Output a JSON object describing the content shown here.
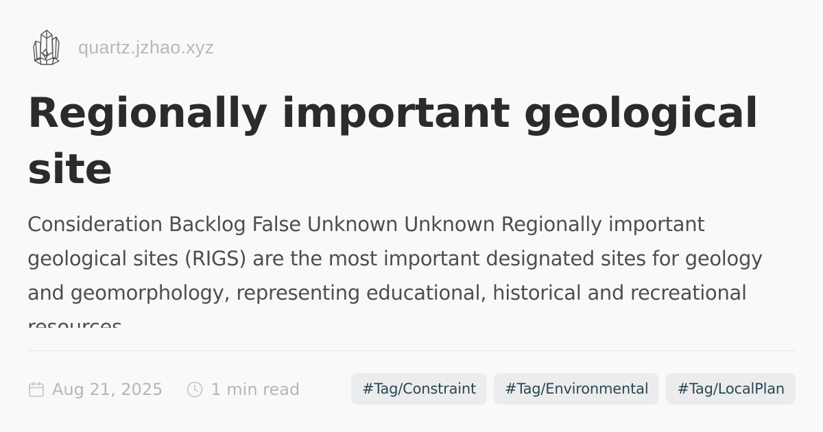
{
  "site": {
    "name": "quartz.jzhao.xyz",
    "logo_icon": "crystal-cluster-icon"
  },
  "article": {
    "title": "Regionally important geological site",
    "description": "Consideration Backlog False Unknown Unknown Regionally important geological sites (RIGS) are the most important designated sites for geology and geomorphology, representing educational, historical and recreational resources",
    "date": "Aug 21, 2025",
    "reading_time": "1 min read",
    "tags": [
      "#Tag/Constraint",
      "#Tag/Environmental",
      "#Tag/LocalPlan"
    ]
  },
  "colors": {
    "background": "#faf9fa",
    "title": "#2b2b2b",
    "body_text": "#4e4e4e",
    "muted_text": "#b6b6ba",
    "tag_background": "#ebeced",
    "tag_text": "#2c4654"
  }
}
